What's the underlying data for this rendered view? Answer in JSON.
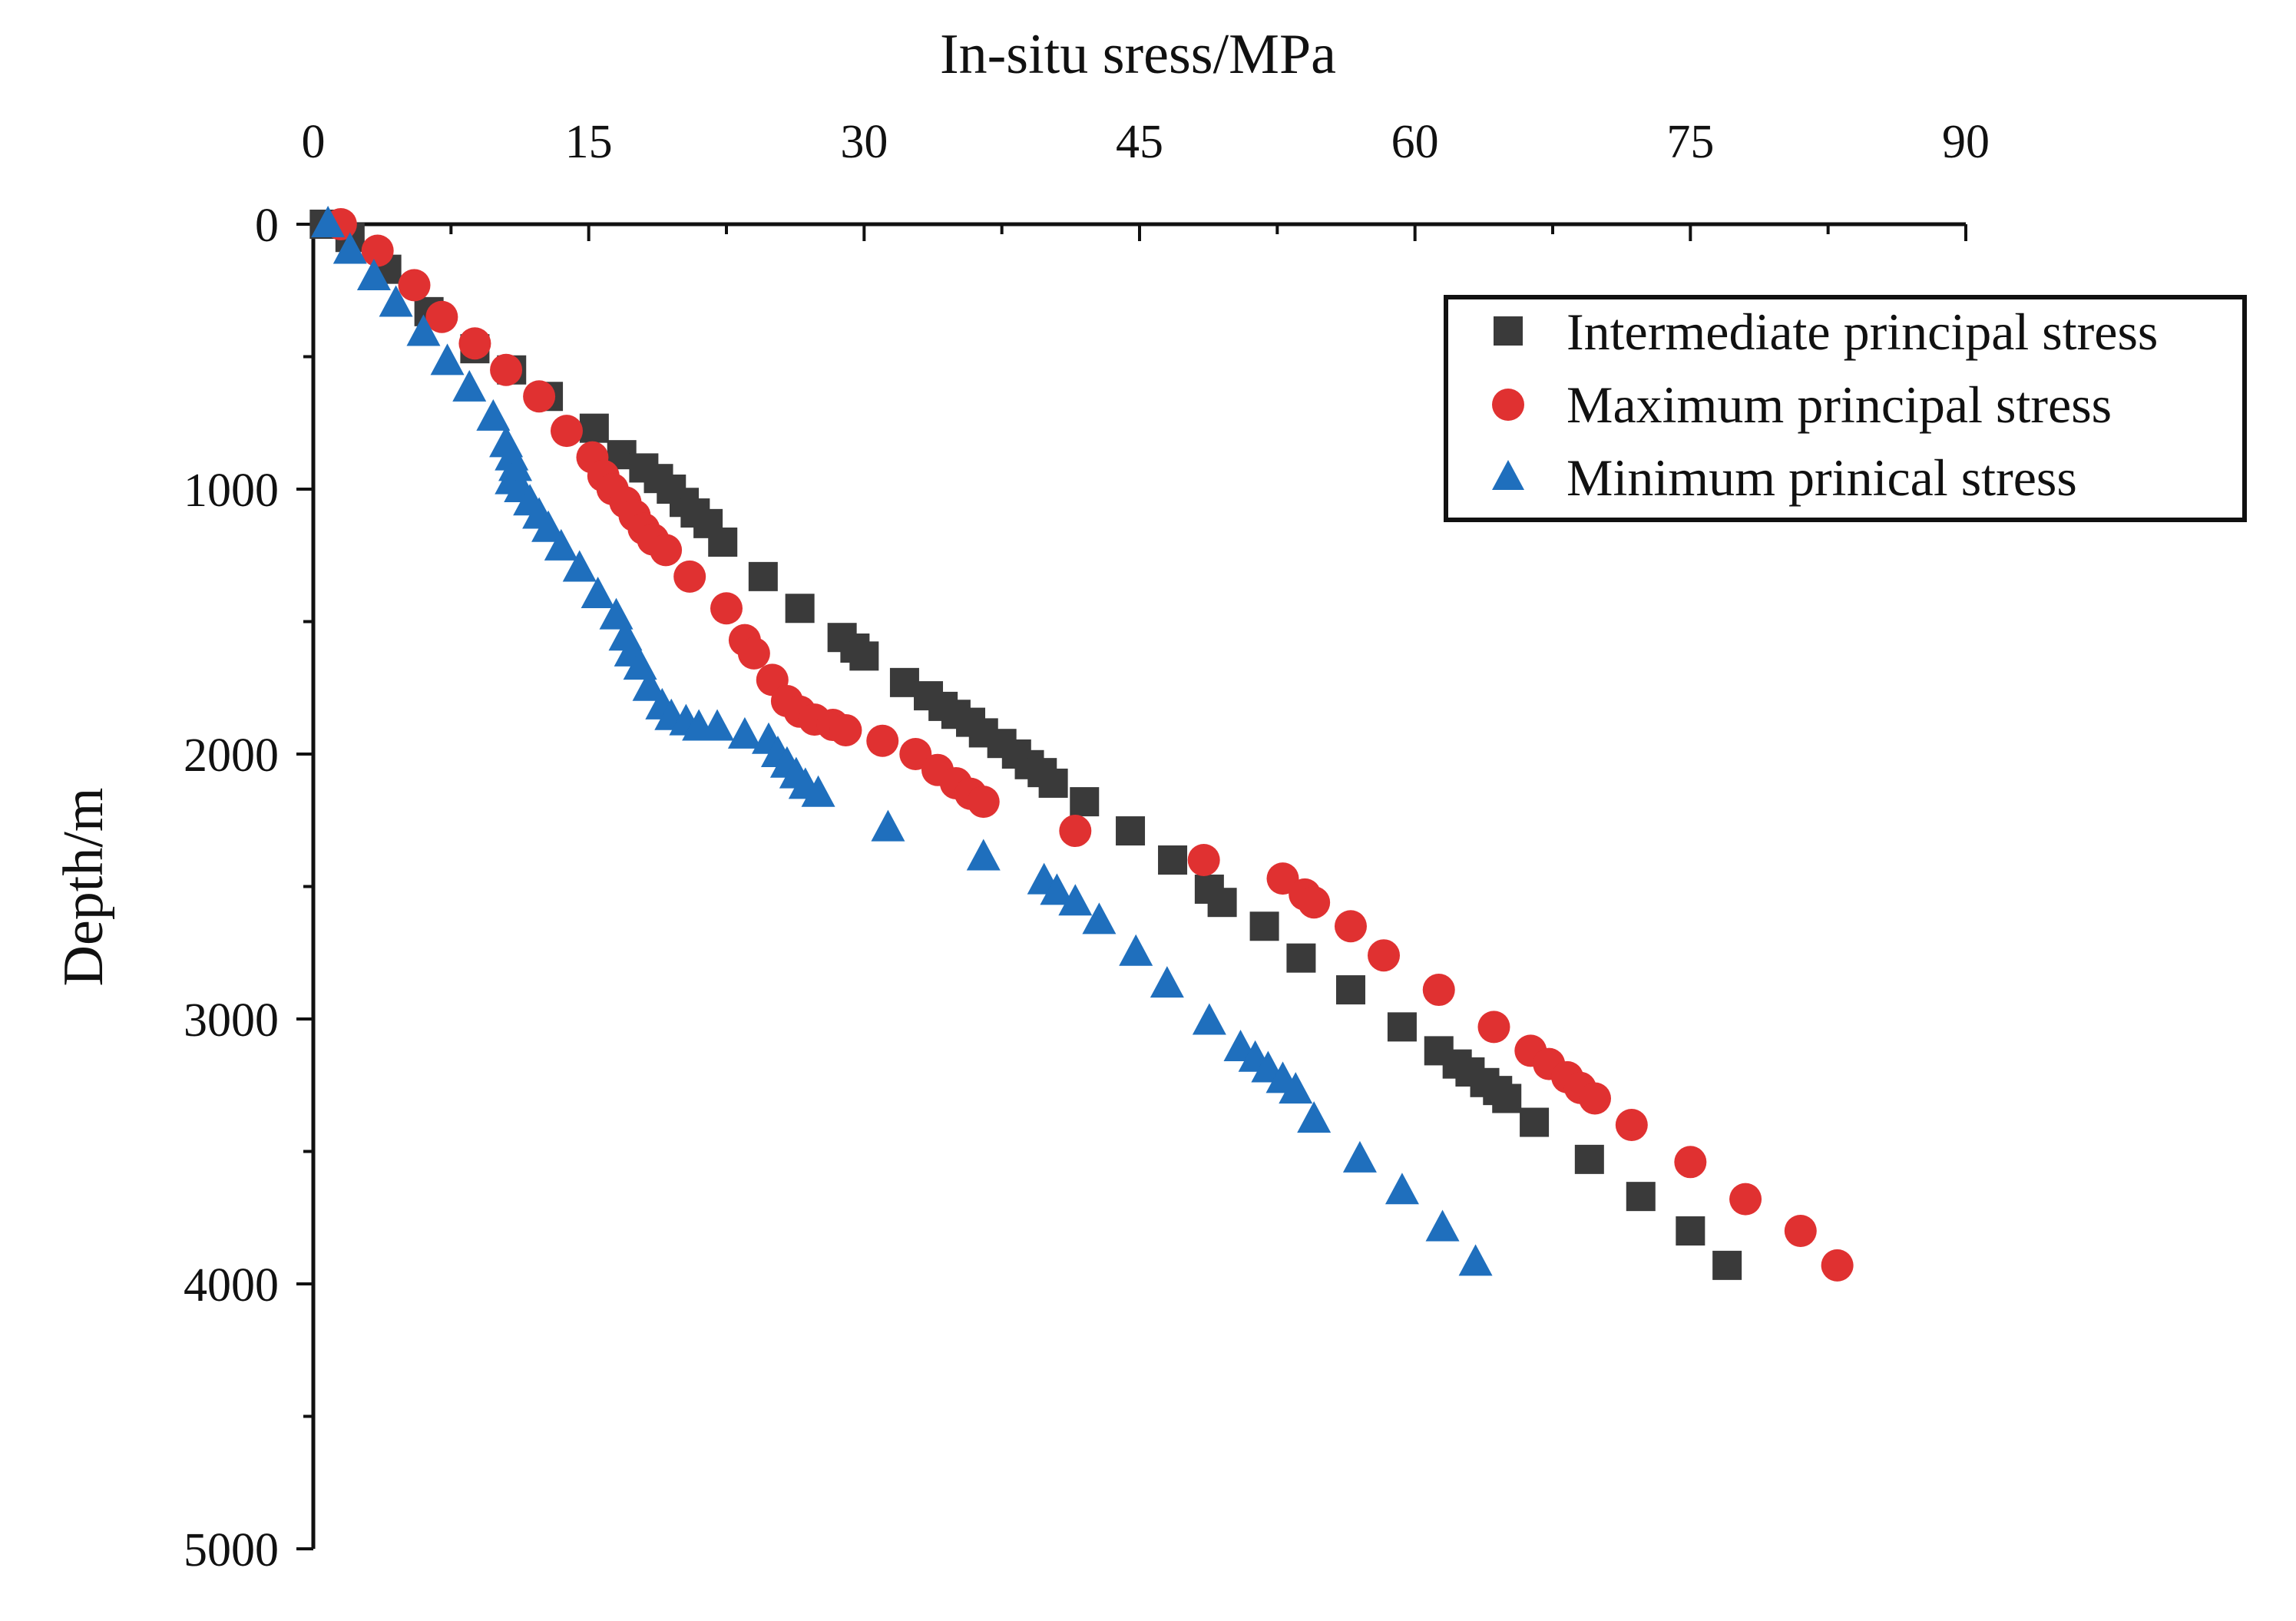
{
  "chart_data": {
    "type": "scatter",
    "title": "",
    "xlabel": "In-situ sress/MPa",
    "ylabel": "Depth/m",
    "x_axis_position": "top",
    "y_inverted": true,
    "xlim": [
      0,
      90
    ],
    "ylim": [
      0,
      5000
    ],
    "x_major_ticks": [
      0,
      15,
      30,
      45,
      60,
      75,
      90
    ],
    "x_minor_ticks": [
      7.5,
      22.5,
      37.5,
      52.5,
      67.5,
      82.5
    ],
    "y_major_ticks": [
      0,
      1000,
      2000,
      3000,
      4000,
      5000
    ],
    "y_minor_ticks": [
      500,
      1500,
      2500,
      3500,
      4500
    ],
    "x_tick_labels": [
      "0",
      "15",
      "30",
      "45",
      "60",
      "75",
      "90"
    ],
    "y_tick_labels": [
      "0",
      "1000",
      "2000",
      "3000",
      "4000",
      "5000"
    ],
    "legend_position": "top-right",
    "grid": false,
    "series": [
      {
        "name": "Intermediate principal stress",
        "marker": "square",
        "color": "#3a3a3a",
        "points": [
          [
            0.6,
            0
          ],
          [
            2.0,
            50
          ],
          [
            4.0,
            170
          ],
          [
            6.3,
            330
          ],
          [
            8.8,
            470
          ],
          [
            10.8,
            550
          ],
          [
            12.8,
            650
          ],
          [
            15.3,
            770
          ],
          [
            16.8,
            870
          ],
          [
            18.0,
            920
          ],
          [
            18.8,
            960
          ],
          [
            19.5,
            1000
          ],
          [
            20.2,
            1050
          ],
          [
            20.8,
            1090
          ],
          [
            21.5,
            1130
          ],
          [
            22.3,
            1200
          ],
          [
            24.5,
            1330
          ],
          [
            26.5,
            1450
          ],
          [
            28.8,
            1560
          ],
          [
            29.5,
            1600
          ],
          [
            30.0,
            1630
          ],
          [
            32.2,
            1730
          ],
          [
            33.5,
            1780
          ],
          [
            34.3,
            1820
          ],
          [
            35.0,
            1850
          ],
          [
            35.8,
            1880
          ],
          [
            36.5,
            1920
          ],
          [
            37.5,
            1960
          ],
          [
            38.3,
            2000
          ],
          [
            39.0,
            2040
          ],
          [
            39.7,
            2070
          ],
          [
            40.3,
            2110
          ],
          [
            42.0,
            2180
          ],
          [
            44.5,
            2290
          ],
          [
            46.8,
            2400
          ],
          [
            48.8,
            2510
          ],
          [
            49.5,
            2560
          ],
          [
            51.8,
            2650
          ],
          [
            53.8,
            2770
          ],
          [
            56.5,
            2890
          ],
          [
            59.3,
            3030
          ],
          [
            61.3,
            3120
          ],
          [
            62.3,
            3170
          ],
          [
            63.0,
            3200
          ],
          [
            63.8,
            3240
          ],
          [
            64.5,
            3270
          ],
          [
            65.0,
            3300
          ],
          [
            66.5,
            3390
          ],
          [
            69.5,
            3530
          ],
          [
            72.3,
            3670
          ],
          [
            75.0,
            3800
          ],
          [
            77.0,
            3930
          ]
        ]
      },
      {
        "name": "Maximum principal stress",
        "marker": "circle",
        "color": "#e03131",
        "points": [
          [
            1.5,
            0
          ],
          [
            3.5,
            100
          ],
          [
            5.5,
            230
          ],
          [
            7.0,
            350
          ],
          [
            8.8,
            450
          ],
          [
            10.5,
            550
          ],
          [
            12.3,
            650
          ],
          [
            13.8,
            780
          ],
          [
            15.2,
            880
          ],
          [
            15.8,
            950
          ],
          [
            16.3,
            1000
          ],
          [
            17.0,
            1050
          ],
          [
            17.5,
            1100
          ],
          [
            18.0,
            1150
          ],
          [
            18.5,
            1190
          ],
          [
            19.2,
            1230
          ],
          [
            20.5,
            1330
          ],
          [
            22.5,
            1450
          ],
          [
            23.5,
            1570
          ],
          [
            24.0,
            1620
          ],
          [
            25.0,
            1720
          ],
          [
            25.8,
            1800
          ],
          [
            26.5,
            1840
          ],
          [
            27.3,
            1870
          ],
          [
            28.3,
            1890
          ],
          [
            29.0,
            1910
          ],
          [
            31.0,
            1950
          ],
          [
            32.8,
            2000
          ],
          [
            34.0,
            2060
          ],
          [
            35.0,
            2110
          ],
          [
            35.8,
            2150
          ],
          [
            36.5,
            2180
          ],
          [
            41.5,
            2290
          ],
          [
            48.5,
            2400
          ],
          [
            52.8,
            2470
          ],
          [
            54.0,
            2530
          ],
          [
            54.5,
            2560
          ],
          [
            56.5,
            2650
          ],
          [
            58.3,
            2760
          ],
          [
            61.3,
            2890
          ],
          [
            64.3,
            3030
          ],
          [
            66.3,
            3120
          ],
          [
            67.3,
            3170
          ],
          [
            68.3,
            3220
          ],
          [
            69.0,
            3260
          ],
          [
            69.8,
            3300
          ],
          [
            71.8,
            3400
          ],
          [
            75.0,
            3540
          ],
          [
            78.0,
            3680
          ],
          [
            81.0,
            3800
          ],
          [
            83.0,
            3930
          ]
        ]
      },
      {
        "name": "Minimum prinical stress",
        "marker": "triangle",
        "color": "#1f6fbd",
        "points": [
          [
            0.8,
            0
          ],
          [
            2.0,
            100
          ],
          [
            3.3,
            200
          ],
          [
            4.5,
            300
          ],
          [
            6.0,
            410
          ],
          [
            7.3,
            520
          ],
          [
            8.5,
            620
          ],
          [
            9.8,
            730
          ],
          [
            10.5,
            830
          ],
          [
            10.8,
            880
          ],
          [
            11.0,
            920
          ],
          [
            10.8,
            970
          ],
          [
            11.3,
            1000
          ],
          [
            11.8,
            1050
          ],
          [
            12.3,
            1100
          ],
          [
            12.8,
            1150
          ],
          [
            13.5,
            1220
          ],
          [
            14.5,
            1300
          ],
          [
            15.5,
            1400
          ],
          [
            16.5,
            1480
          ],
          [
            17.0,
            1560
          ],
          [
            17.3,
            1620
          ],
          [
            17.8,
            1670
          ],
          [
            18.3,
            1750
          ],
          [
            19.0,
            1820
          ],
          [
            19.5,
            1860
          ],
          [
            20.3,
            1880
          ],
          [
            21.0,
            1900
          ],
          [
            22.0,
            1900
          ],
          [
            23.5,
            1930
          ],
          [
            24.8,
            1950
          ],
          [
            25.3,
            2000
          ],
          [
            25.8,
            2040
          ],
          [
            26.3,
            2080
          ],
          [
            26.8,
            2120
          ],
          [
            27.5,
            2150
          ],
          [
            31.3,
            2280
          ],
          [
            36.5,
            2390
          ],
          [
            39.8,
            2480
          ],
          [
            40.5,
            2520
          ],
          [
            41.5,
            2560
          ],
          [
            42.8,
            2630
          ],
          [
            44.8,
            2750
          ],
          [
            46.5,
            2870
          ],
          [
            48.8,
            3010
          ],
          [
            50.5,
            3110
          ],
          [
            51.3,
            3150
          ],
          [
            52.0,
            3190
          ],
          [
            52.8,
            3230
          ],
          [
            53.5,
            3270
          ],
          [
            54.5,
            3380
          ],
          [
            57.0,
            3530
          ],
          [
            59.3,
            3650
          ],
          [
            61.5,
            3790
          ],
          [
            63.3,
            3920
          ]
        ]
      }
    ]
  }
}
